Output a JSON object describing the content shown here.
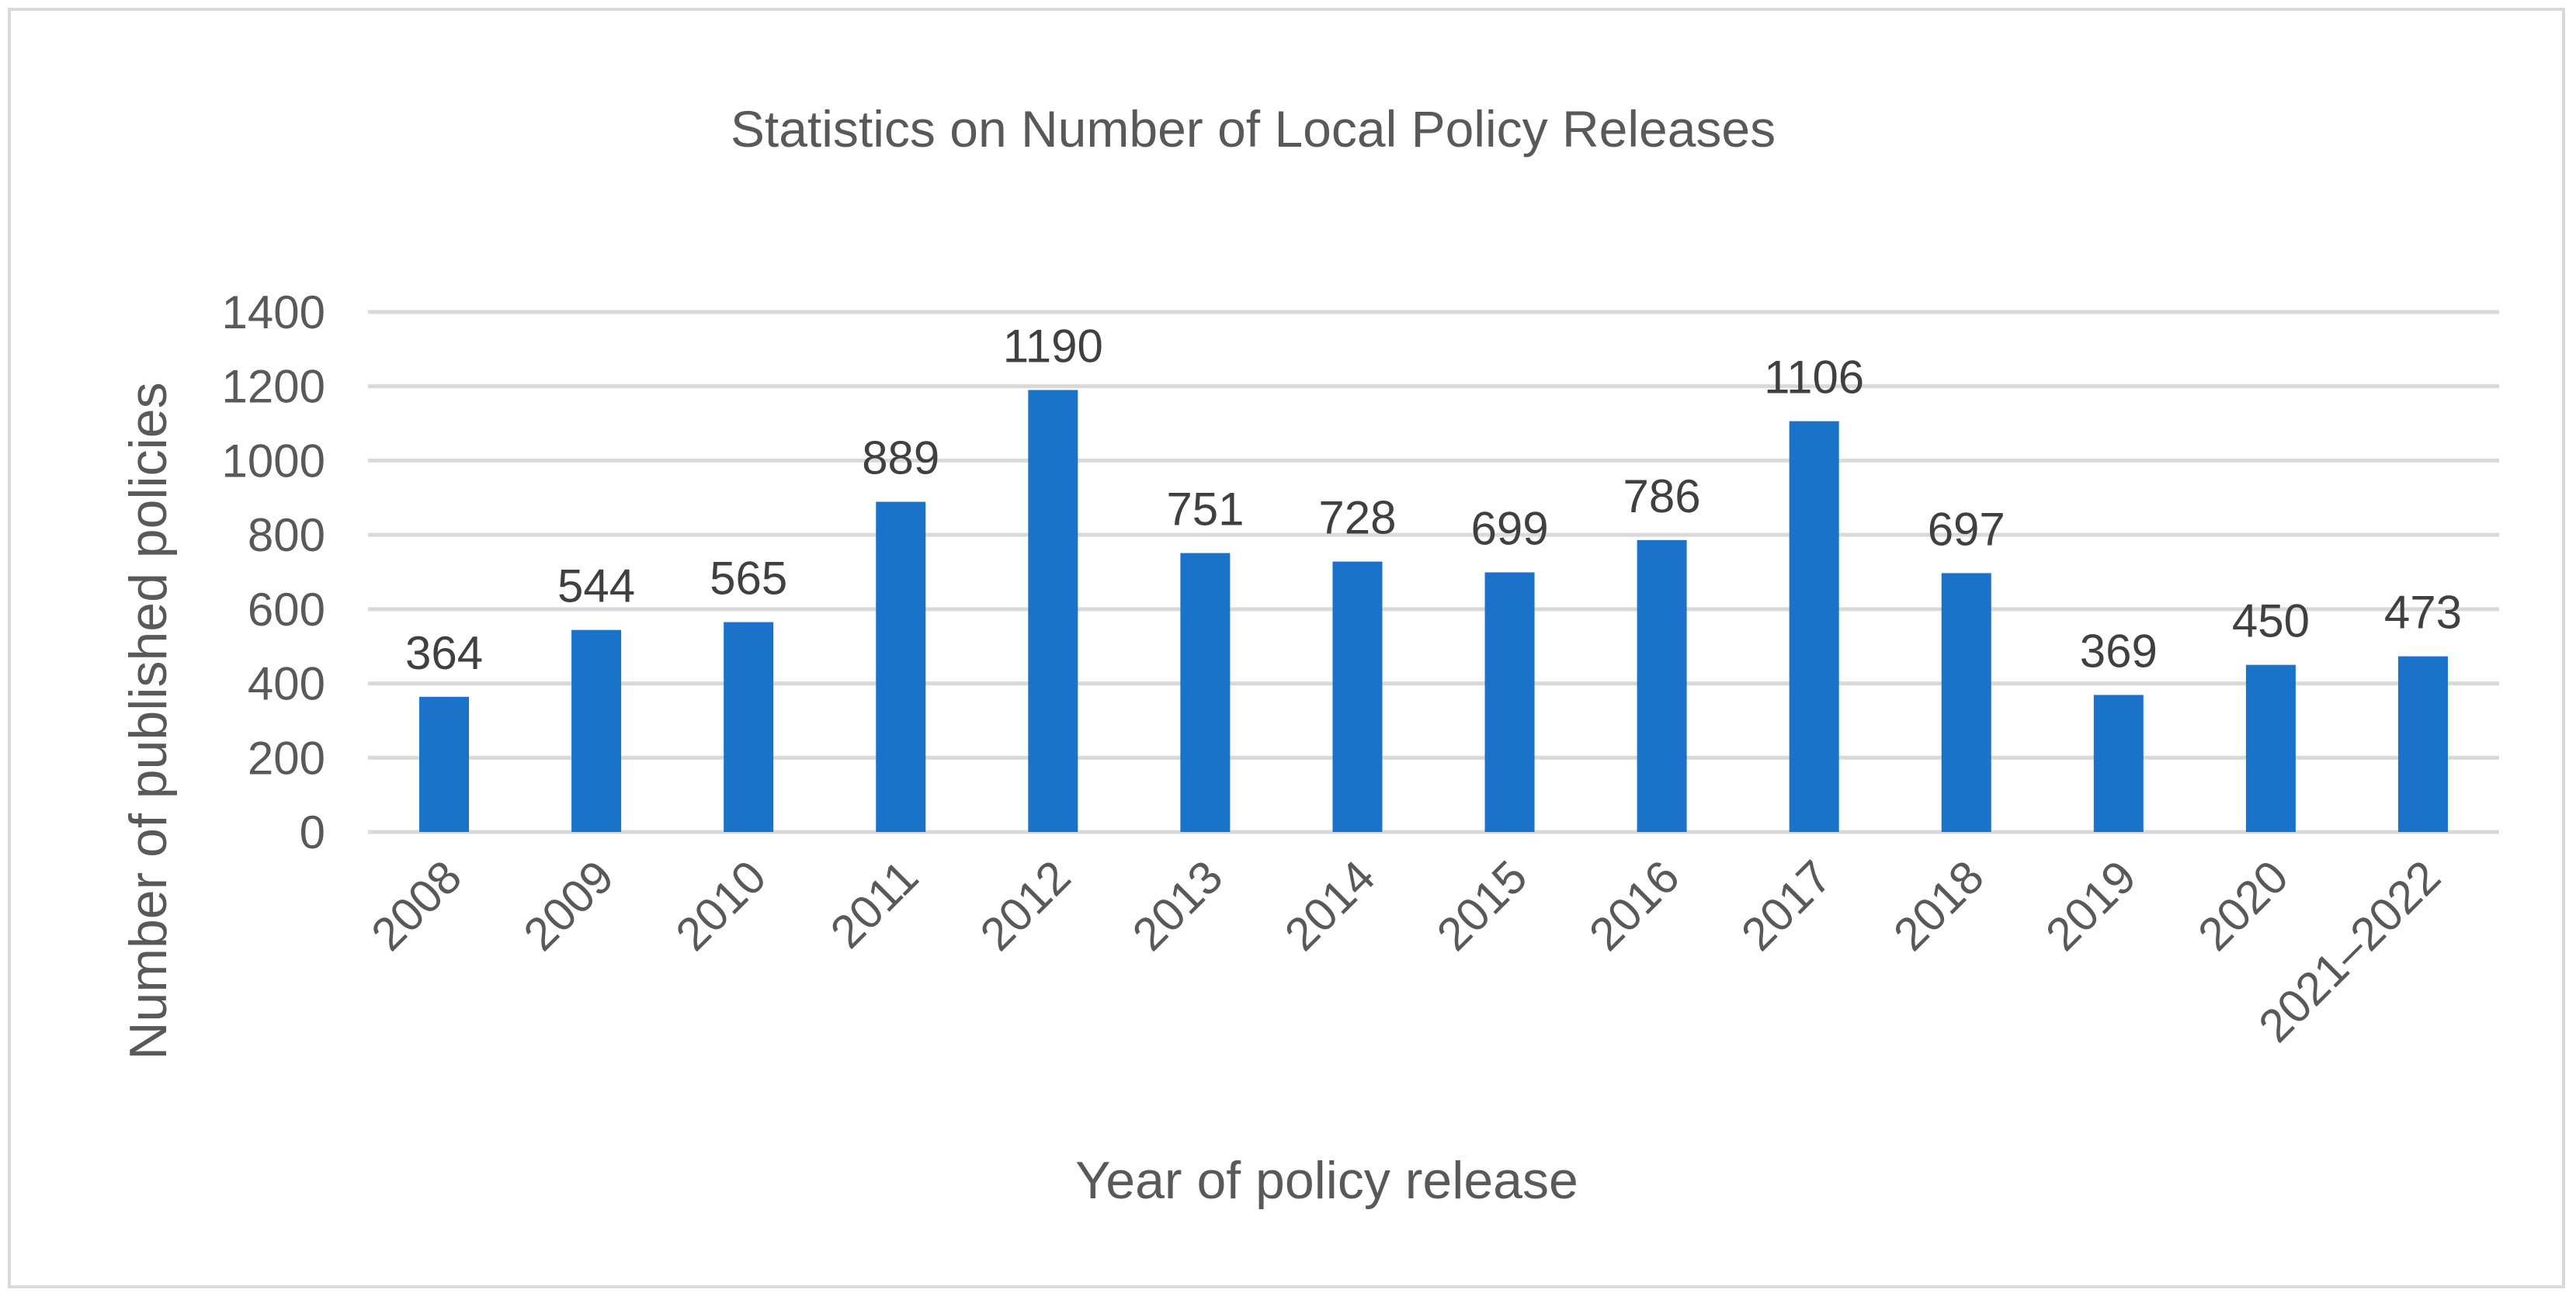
{
  "chart_data": {
    "type": "bar",
    "title": "Statistics on Number of Local Policy Releases",
    "xlabel": "Year of policy release",
    "ylabel": "Number of published policies",
    "categories": [
      "2008",
      "2009",
      "2010",
      "2011",
      "2012",
      "2013",
      "2014",
      "2015",
      "2016",
      "2017",
      "2018",
      "2019",
      "2020",
      "2021–2022"
    ],
    "values": [
      364,
      544,
      565,
      889,
      1190,
      751,
      728,
      699,
      786,
      1106,
      697,
      369,
      450,
      473
    ],
    "ylim": [
      0,
      1400
    ],
    "yticks": [
      0,
      200,
      400,
      600,
      800,
      1000,
      1200,
      1400
    ],
    "grid": true,
    "legend": "none",
    "bar_color": "#1a73c9"
  }
}
